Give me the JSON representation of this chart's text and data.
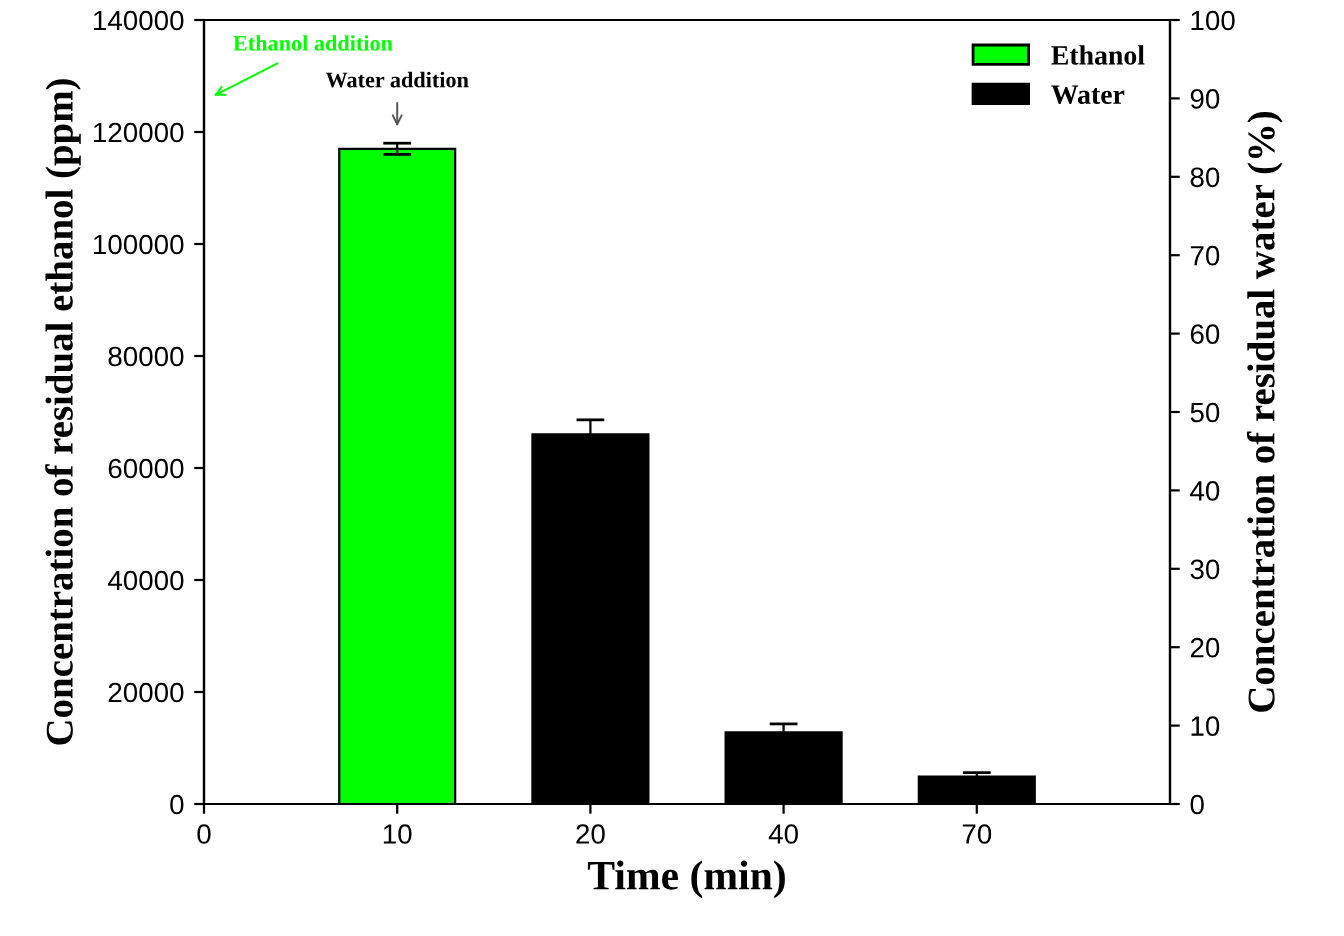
{
  "chart_data": {
    "type": "bar",
    "xlabel": "Time (min)",
    "ylabel": "Concentration of residual ethanol (ppm)",
    "y2label": "Concentration of residual water (%)",
    "categories": [
      "0",
      "10",
      "20",
      "40",
      "70"
    ],
    "series": [
      {
        "name": "Ethanol",
        "color": "#00ff00",
        "values": [
          null,
          117000,
          null,
          null,
          null
        ],
        "errors": [
          null,
          1000,
          null,
          null,
          null
        ]
      },
      {
        "name": "Water",
        "color": "#000000",
        "values": [
          null,
          null,
          66000,
          12800,
          4900
        ],
        "errors": [
          null,
          null,
          2600,
          1500,
          700
        ]
      }
    ],
    "ylim": [
      0,
      140000
    ],
    "yticks": [
      0,
      20000,
      40000,
      60000,
      80000,
      100000,
      120000,
      140000
    ],
    "y2lim": [
      0,
      100
    ],
    "y2ticks": [
      0,
      10,
      20,
      30,
      40,
      50,
      60,
      70,
      80,
      90,
      100
    ],
    "annotations": [
      "Ethanol addition",
      {
        "text": "Water addition",
        "x": "10",
        "y": 118000
      }
    ],
    "legend": "top right",
    "grid": false
  }
}
